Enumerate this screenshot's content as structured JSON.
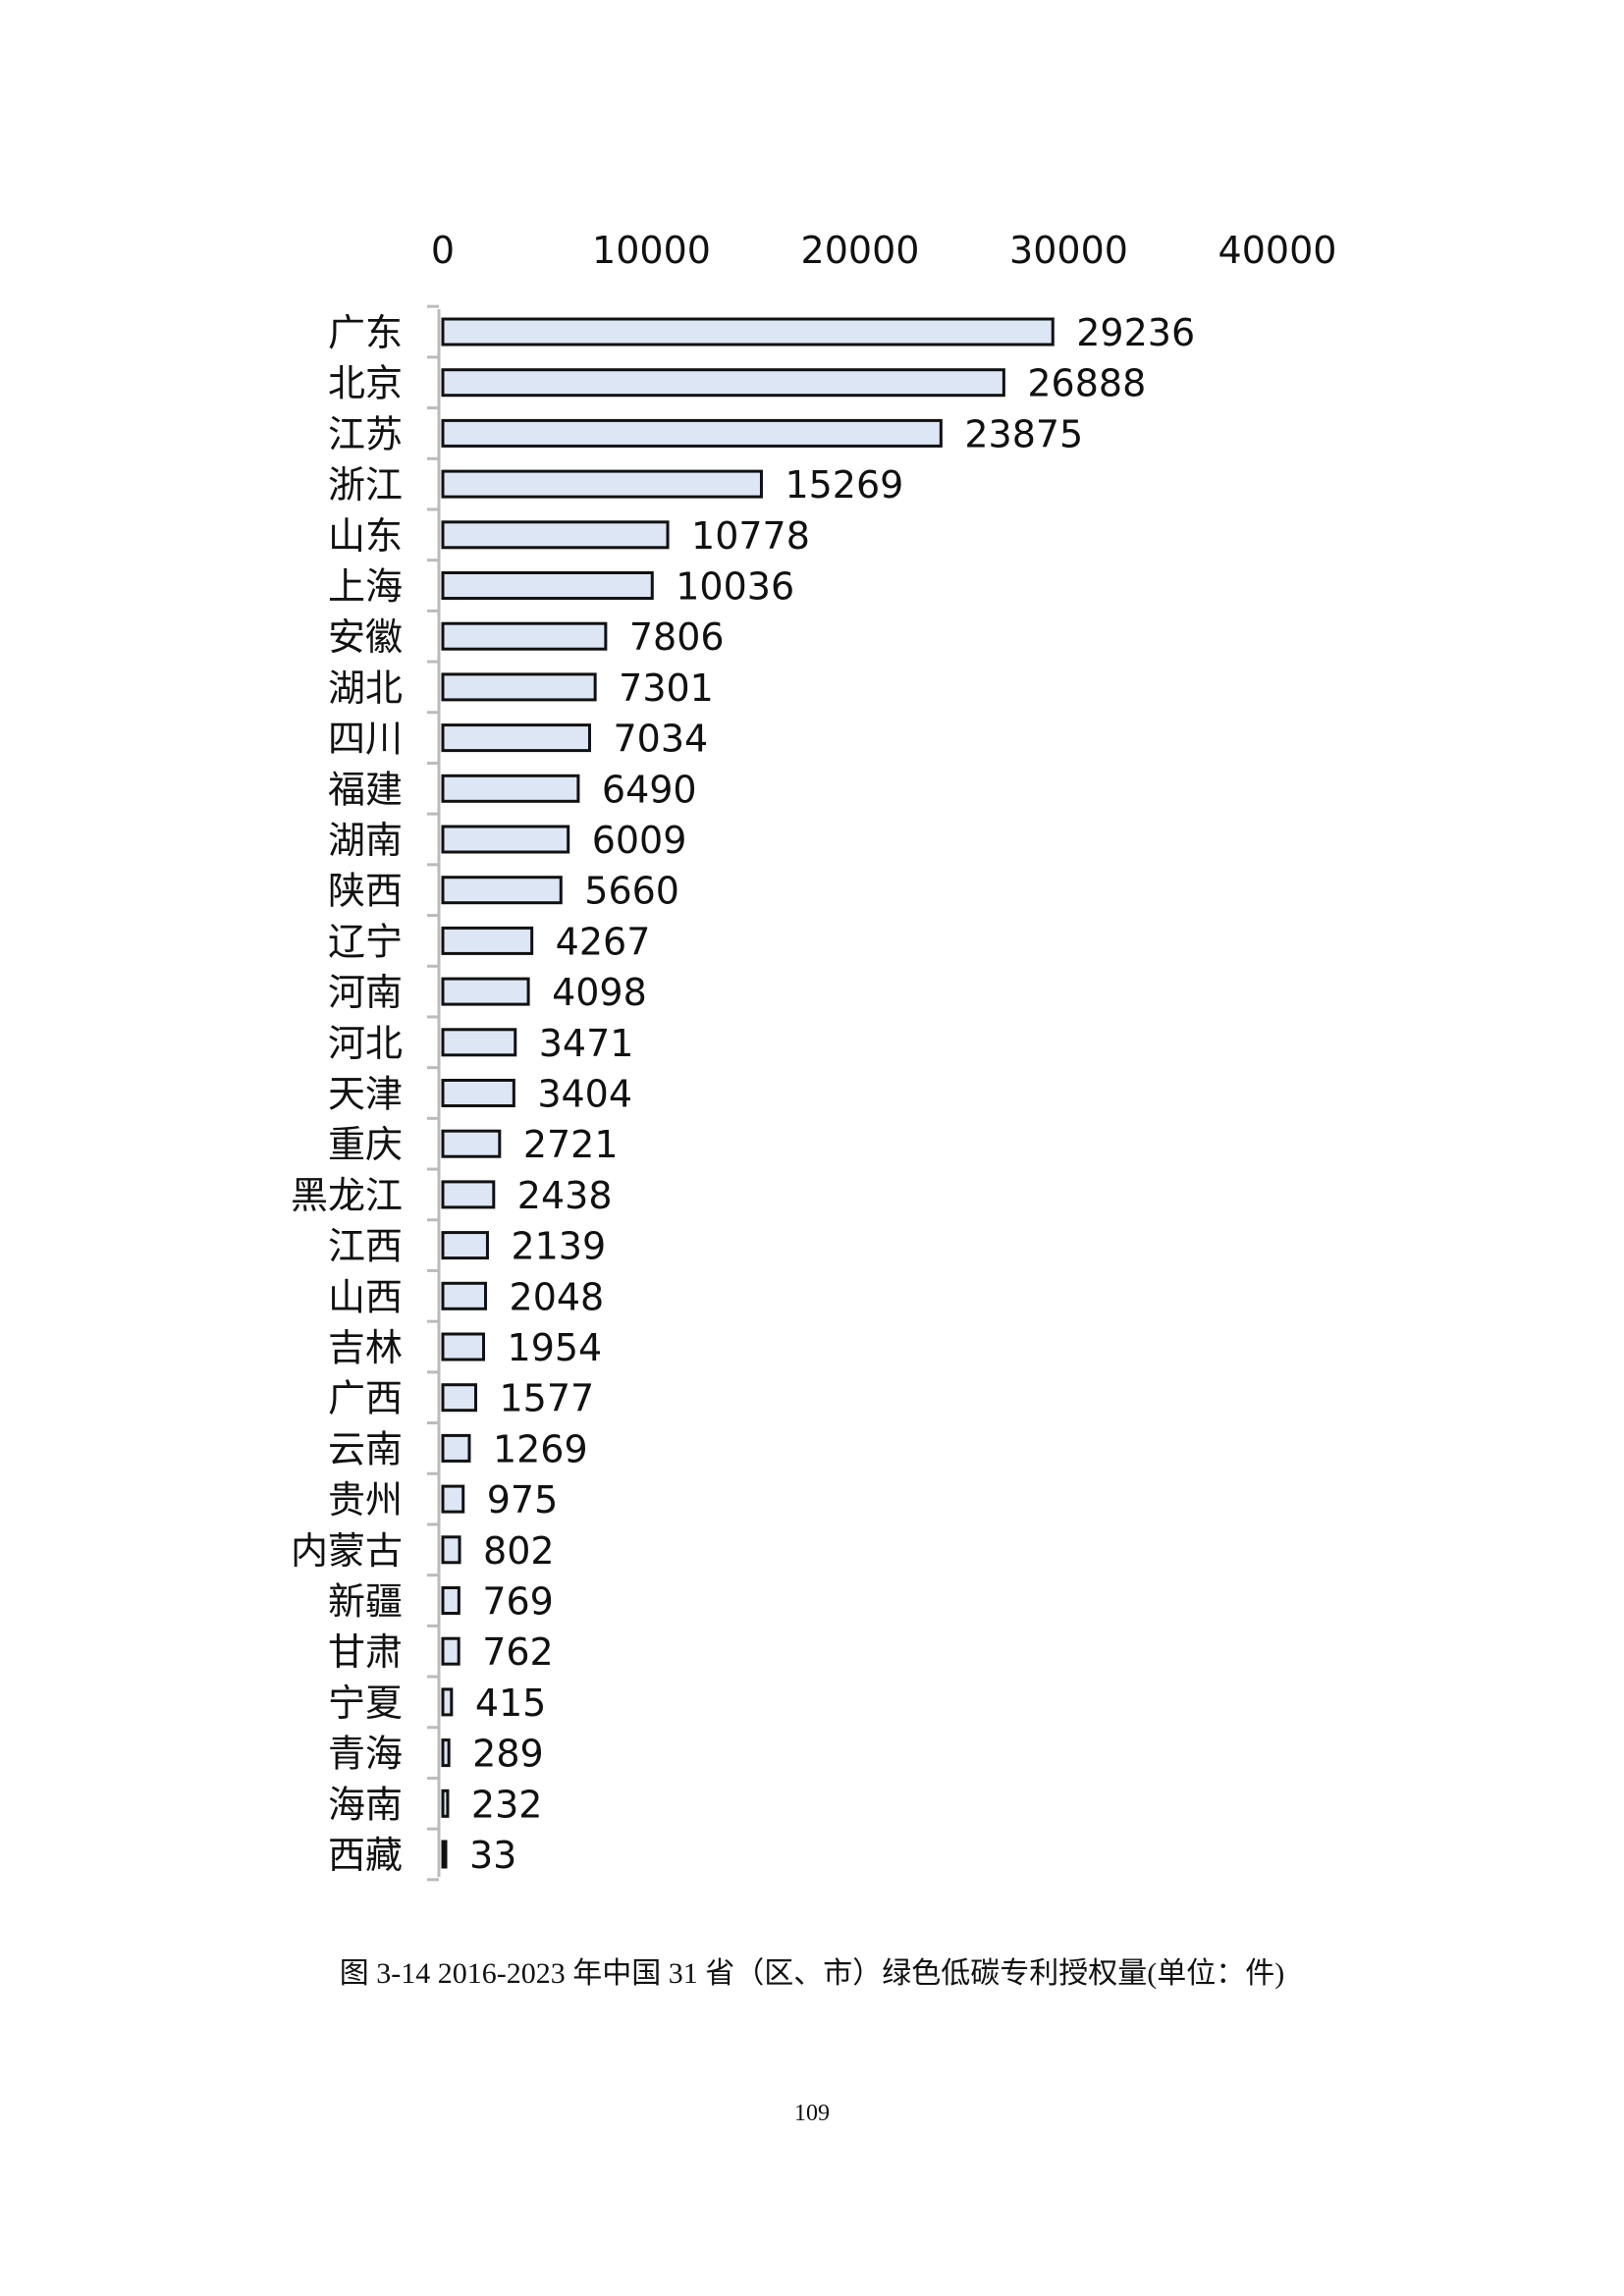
{
  "page": {
    "caption": "图 3-14 2016-2023 年中国 31 省（区、市）绿色低碳专利授权量(单位：件)",
    "page_number": "109"
  },
  "colors": {
    "bar_fill": "#dce6f4",
    "bar_stroke": "#111111",
    "axis": "#bbbbbb"
  },
  "chart_data": {
    "type": "bar",
    "orientation": "horizontal",
    "title": "",
    "xlabel": "",
    "ylabel": "",
    "xlim": [
      0,
      40000
    ],
    "x_ticks": [
      "0",
      "10000",
      "20000",
      "30000",
      "40000"
    ],
    "x_axis_position": "top",
    "grid": false,
    "data_labels": true,
    "categories": [
      "广东",
      "北京",
      "江苏",
      "浙江",
      "山东",
      "上海",
      "安徽",
      "湖北",
      "四川",
      "福建",
      "湖南",
      "陕西",
      "辽宁",
      "河南",
      "河北",
      "天津",
      "重庆",
      "黑龙江",
      "江西",
      "山西",
      "吉林",
      "广西",
      "云南",
      "贵州",
      "内蒙古",
      "新疆",
      "甘肃",
      "宁夏",
      "青海",
      "海南",
      "西藏"
    ],
    "values": [
      29236,
      26888,
      23875,
      15269,
      10778,
      10036,
      7806,
      7301,
      7034,
      6490,
      6009,
      5660,
      4267,
      4098,
      3471,
      3404,
      2721,
      2438,
      2139,
      2048,
      1954,
      1577,
      1269,
      975,
      802,
      769,
      762,
      415,
      289,
      232,
      33
    ]
  }
}
